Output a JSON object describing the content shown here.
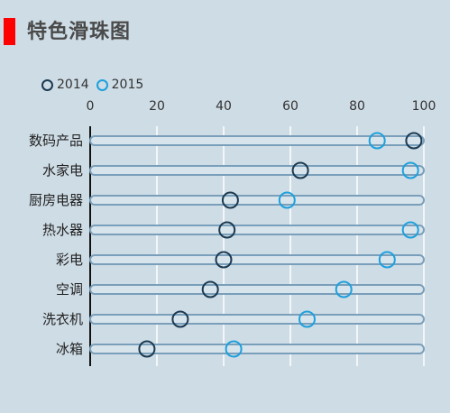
{
  "chart_data": {
    "type": "dot-plot",
    "title": "特色滑珠图",
    "xlim": [
      0,
      100
    ],
    "x_ticks": [
      "0",
      "20",
      "40",
      "60",
      "80",
      "100"
    ],
    "tick_values": [
      0,
      20,
      40,
      60,
      80,
      100
    ],
    "categories": [
      "数码产品",
      "水家电",
      "厨房电器",
      "热水器",
      "彩电",
      "空调",
      "洗衣机",
      "冰箱"
    ],
    "series": [
      {
        "name": "2014",
        "color": "#1a3a52",
        "values": [
          97,
          63,
          42,
          41,
          40,
          36,
          27,
          17
        ]
      },
      {
        "name": "2015",
        "color": "#1ea0dc",
        "values": [
          86,
          96,
          59,
          96,
          89,
          76,
          65,
          43
        ]
      }
    ],
    "grid": true,
    "legend_position": "top-left"
  }
}
